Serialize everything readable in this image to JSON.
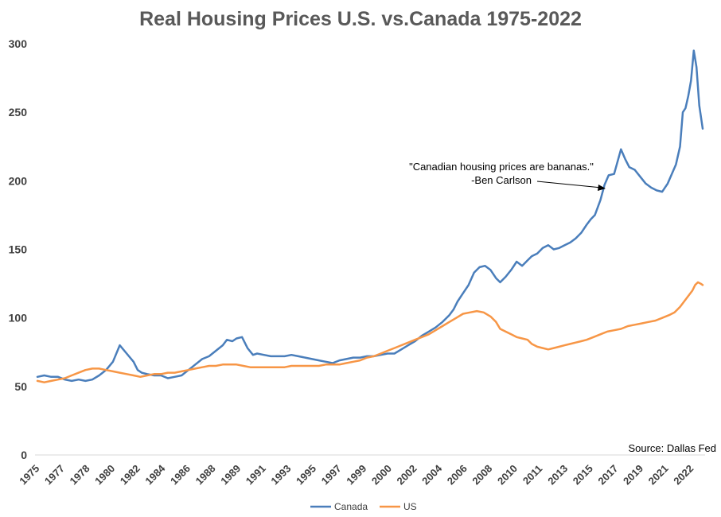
{
  "chart_data": {
    "type": "line",
    "title": "Real Housing Prices U.S. vs.Canada 1975-2022",
    "xlabel": "",
    "ylabel": "",
    "ylim": [
      0,
      300
    ],
    "yticks": [
      "0",
      "50",
      "100",
      "150",
      "200",
      "250",
      "300"
    ],
    "xticks": [
      "1975",
      "1977",
      "1978",
      "1980",
      "1982",
      "1984",
      "1986",
      "1988",
      "1989",
      "1991",
      "1993",
      "1995",
      "1997",
      "1999",
      "2000",
      "2002",
      "2004",
      "2006",
      "2008",
      "2010",
      "2011",
      "2013",
      "2015",
      "2017",
      "2019",
      "2021",
      "2022"
    ],
    "grid": false,
    "legend": "bottom",
    "source_note": "Source: Dallas Fed",
    "annotation": {
      "line1": "\"Canadian housing prices are bananas.\"",
      "line2": "-Ben Carlson"
    },
    "series": [
      {
        "name": "Canada",
        "color": "#4a7ebb",
        "points": [
          [
            1975,
            57
          ],
          [
            1975.5,
            58
          ],
          [
            1976,
            57
          ],
          [
            1976.5,
            57
          ],
          [
            1977,
            55
          ],
          [
            1977.5,
            54
          ],
          [
            1978,
            55
          ],
          [
            1978.5,
            54
          ],
          [
            1979,
            55
          ],
          [
            1979.5,
            58
          ],
          [
            1980,
            62
          ],
          [
            1980.5,
            68
          ],
          [
            1981,
            80
          ],
          [
            1981.5,
            74
          ],
          [
            1982,
            68
          ],
          [
            1982.3,
            62
          ],
          [
            1982.6,
            60
          ],
          [
            1983,
            59
          ],
          [
            1983.5,
            58
          ],
          [
            1984,
            58
          ],
          [
            1984.5,
            56
          ],
          [
            1985,
            57
          ],
          [
            1985.5,
            58
          ],
          [
            1986,
            62
          ],
          [
            1986.5,
            66
          ],
          [
            1987,
            70
          ],
          [
            1987.5,
            72
          ],
          [
            1988,
            76
          ],
          [
            1988.5,
            80
          ],
          [
            1988.8,
            84
          ],
          [
            1989.2,
            83
          ],
          [
            1989.5,
            85
          ],
          [
            1989.9,
            86
          ],
          [
            1990.3,
            78
          ],
          [
            1990.7,
            73
          ],
          [
            1991,
            74
          ],
          [
            1991.5,
            73
          ],
          [
            1992,
            72
          ],
          [
            1992.5,
            72
          ],
          [
            1993,
            72
          ],
          [
            1993.5,
            73
          ],
          [
            1994,
            72
          ],
          [
            1994.5,
            71
          ],
          [
            1995,
            70
          ],
          [
            1995.5,
            69
          ],
          [
            1996,
            68
          ],
          [
            1996.5,
            67
          ],
          [
            1997,
            69
          ],
          [
            1997.5,
            70
          ],
          [
            1998,
            71
          ],
          [
            1998.5,
            71
          ],
          [
            1999,
            72
          ],
          [
            1999.5,
            72
          ],
          [
            2000,
            73
          ],
          [
            2000.5,
            74
          ],
          [
            2001,
            74
          ],
          [
            2001.5,
            77
          ],
          [
            2002,
            80
          ],
          [
            2002.5,
            83
          ],
          [
            2003,
            87
          ],
          [
            2003.5,
            90
          ],
          [
            2004,
            93
          ],
          [
            2004.5,
            97
          ],
          [
            2005,
            102
          ],
          [
            2005.3,
            106
          ],
          [
            2005.6,
            112
          ],
          [
            2006,
            118
          ],
          [
            2006.4,
            124
          ],
          [
            2006.8,
            133
          ],
          [
            2007.2,
            137
          ],
          [
            2007.6,
            138
          ],
          [
            2008,
            135
          ],
          [
            2008.4,
            129
          ],
          [
            2008.7,
            126
          ],
          [
            2009.1,
            130
          ],
          [
            2009.5,
            135
          ],
          [
            2009.9,
            141
          ],
          [
            2010.3,
            138
          ],
          [
            2010.7,
            142
          ],
          [
            2011,
            145
          ],
          [
            2011.4,
            147
          ],
          [
            2011.8,
            151
          ],
          [
            2012.2,
            153
          ],
          [
            2012.6,
            150
          ],
          [
            2013,
            151
          ],
          [
            2013.4,
            153
          ],
          [
            2013.8,
            155
          ],
          [
            2014.2,
            158
          ],
          [
            2014.6,
            162
          ],
          [
            2015,
            168
          ],
          [
            2015.3,
            172
          ],
          [
            2015.6,
            175
          ],
          [
            2016,
            186
          ],
          [
            2016.3,
            197
          ],
          [
            2016.6,
            204
          ],
          [
            2017,
            205
          ],
          [
            2017.25,
            214
          ],
          [
            2017.5,
            223
          ],
          [
            2017.8,
            216
          ],
          [
            2018.1,
            210
          ],
          [
            2018.5,
            208
          ],
          [
            2018.9,
            203
          ],
          [
            2019.3,
            198
          ],
          [
            2019.7,
            195
          ],
          [
            2020.1,
            193
          ],
          [
            2020.5,
            192
          ],
          [
            2020.9,
            198
          ],
          [
            2021.2,
            205
          ],
          [
            2021.5,
            212
          ],
          [
            2021.8,
            225
          ],
          [
            2022.0,
            250
          ],
          [
            2022.2,
            253
          ],
          [
            2022.4,
            262
          ],
          [
            2022.6,
            273
          ],
          [
            2022.8,
            295
          ],
          [
            2023.0,
            283
          ],
          [
            2023.2,
            255
          ],
          [
            2023.45,
            238
          ]
        ]
      },
      {
        "name": "US",
        "color": "#f79646",
        "points": [
          [
            1975,
            54
          ],
          [
            1975.5,
            53
          ],
          [
            1976,
            54
          ],
          [
            1976.5,
            55
          ],
          [
            1977,
            56
          ],
          [
            1977.5,
            58
          ],
          [
            1978,
            60
          ],
          [
            1978.5,
            62
          ],
          [
            1979,
            63
          ],
          [
            1979.5,
            63
          ],
          [
            1980,
            62
          ],
          [
            1980.5,
            61
          ],
          [
            1981,
            60
          ],
          [
            1981.5,
            59
          ],
          [
            1982,
            58
          ],
          [
            1982.5,
            57
          ],
          [
            1983,
            58
          ],
          [
            1983.5,
            59
          ],
          [
            1984,
            59
          ],
          [
            1984.5,
            60
          ],
          [
            1985,
            60
          ],
          [
            1985.5,
            61
          ],
          [
            1986,
            62
          ],
          [
            1986.5,
            63
          ],
          [
            1987,
            64
          ],
          [
            1987.5,
            65
          ],
          [
            1988,
            65
          ],
          [
            1988.5,
            66
          ],
          [
            1989,
            66
          ],
          [
            1989.5,
            66
          ],
          [
            1990,
            65
          ],
          [
            1990.5,
            64
          ],
          [
            1991,
            64
          ],
          [
            1991.5,
            64
          ],
          [
            1992,
            64
          ],
          [
            1992.5,
            64
          ],
          [
            1993,
            64
          ],
          [
            1993.5,
            65
          ],
          [
            1994,
            65
          ],
          [
            1994.5,
            65
          ],
          [
            1995,
            65
          ],
          [
            1995.5,
            65
          ],
          [
            1996,
            66
          ],
          [
            1996.5,
            66
          ],
          [
            1997,
            66
          ],
          [
            1997.5,
            67
          ],
          [
            1998,
            68
          ],
          [
            1998.5,
            69
          ],
          [
            1999,
            71
          ],
          [
            1999.5,
            72
          ],
          [
            2000,
            74
          ],
          [
            2000.5,
            76
          ],
          [
            2001,
            78
          ],
          [
            2001.5,
            80
          ],
          [
            2002,
            82
          ],
          [
            2002.5,
            84
          ],
          [
            2003,
            86
          ],
          [
            2003.5,
            88
          ],
          [
            2004,
            91
          ],
          [
            2004.5,
            94
          ],
          [
            2005,
            97
          ],
          [
            2005.5,
            100
          ],
          [
            2006,
            103
          ],
          [
            2006.5,
            104
          ],
          [
            2007,
            105
          ],
          [
            2007.5,
            104
          ],
          [
            2008,
            101
          ],
          [
            2008.4,
            97
          ],
          [
            2008.7,
            92
          ],
          [
            2009.1,
            90
          ],
          [
            2009.5,
            88
          ],
          [
            2009.9,
            86
          ],
          [
            2010.3,
            85
          ],
          [
            2010.7,
            84
          ],
          [
            2011,
            81
          ],
          [
            2011.4,
            79
          ],
          [
            2011.8,
            78
          ],
          [
            2012.2,
            77
          ],
          [
            2012.6,
            78
          ],
          [
            2013,
            79
          ],
          [
            2013.4,
            80
          ],
          [
            2013.8,
            81
          ],
          [
            2014.2,
            82
          ],
          [
            2014.6,
            83
          ],
          [
            2015,
            84
          ],
          [
            2015.5,
            86
          ],
          [
            2016,
            88
          ],
          [
            2016.5,
            90
          ],
          [
            2017,
            91
          ],
          [
            2017.5,
            92
          ],
          [
            2018,
            94
          ],
          [
            2018.5,
            95
          ],
          [
            2019,
            96
          ],
          [
            2019.5,
            97
          ],
          [
            2020,
            98
          ],
          [
            2020.5,
            100
          ],
          [
            2021,
            102
          ],
          [
            2021.4,
            104
          ],
          [
            2021.8,
            108
          ],
          [
            2022.1,
            112
          ],
          [
            2022.4,
            116
          ],
          [
            2022.7,
            120
          ],
          [
            2022.9,
            124
          ],
          [
            2023.1,
            126
          ],
          [
            2023.3,
            125
          ],
          [
            2023.45,
            124
          ]
        ]
      }
    ]
  }
}
